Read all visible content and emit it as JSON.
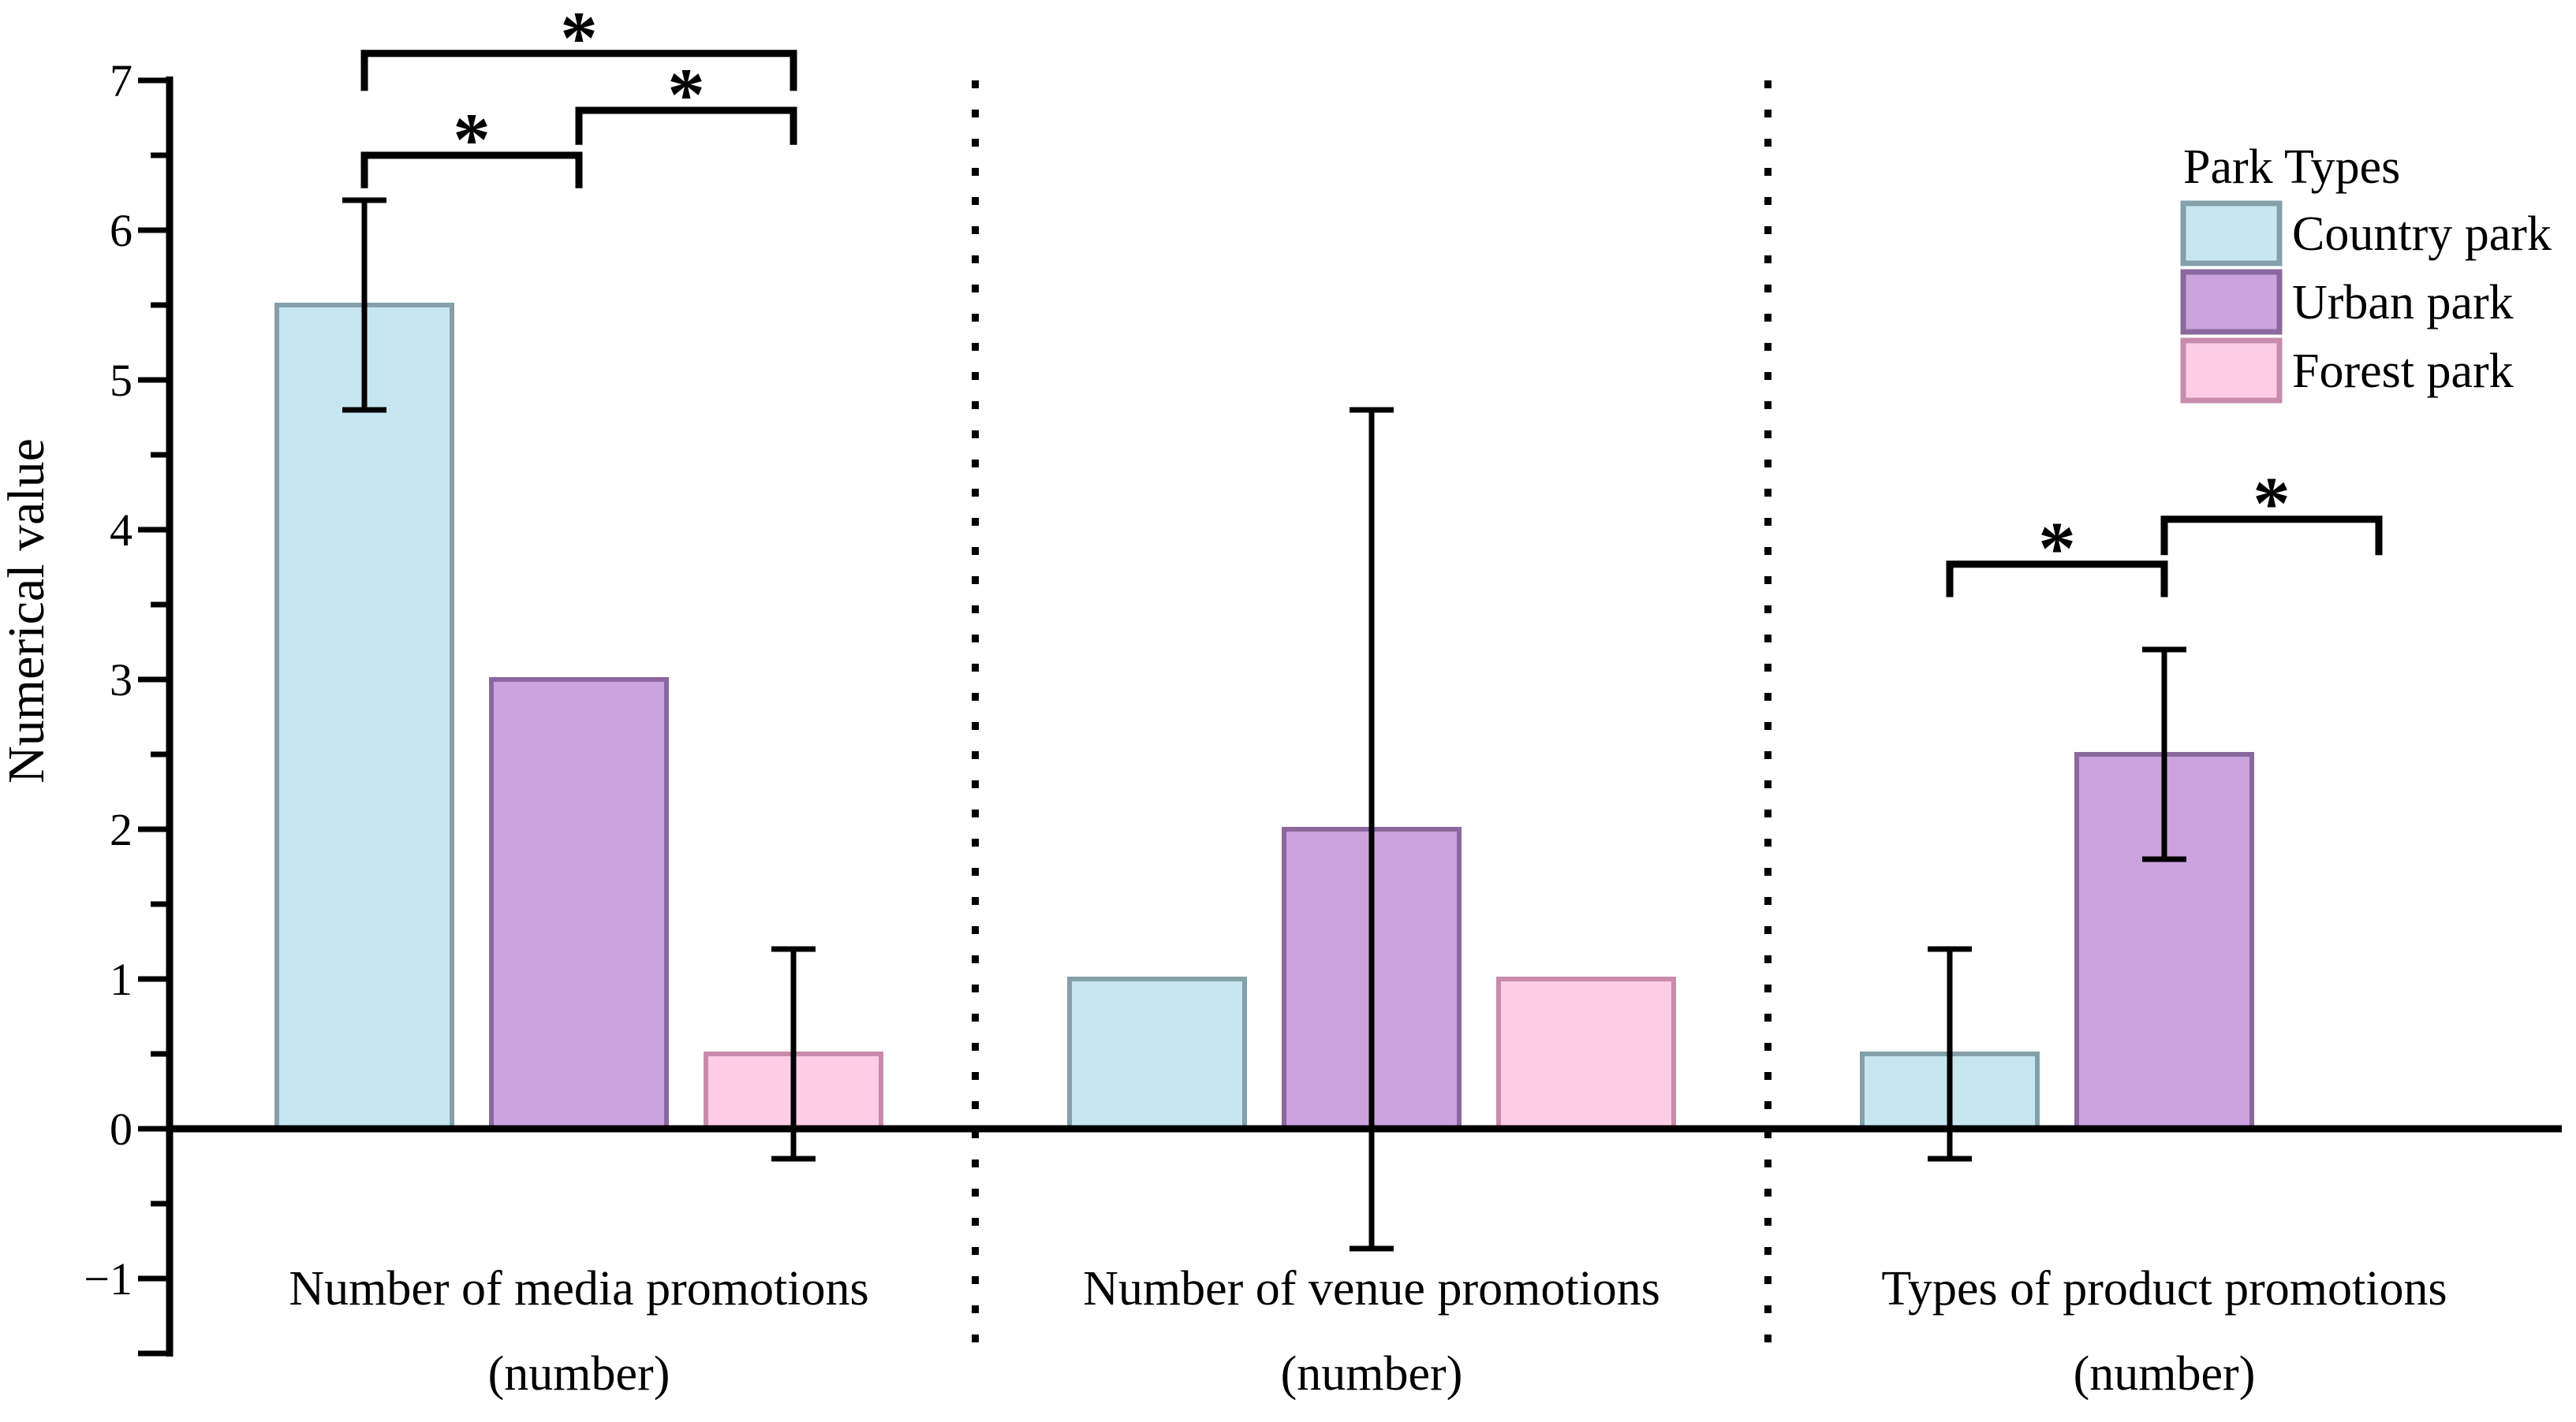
{
  "chart_data": {
    "type": "bar",
    "title": "",
    "ylabel": "Numerical value",
    "xlabel": "",
    "ylim": [
      -1.5,
      7
    ],
    "grid": false,
    "minor_tick_step": 0.5,
    "yticks": [
      {
        "v": 7,
        "label": "7"
      },
      {
        "v": 6,
        "label": "6"
      },
      {
        "v": 5,
        "label": "5"
      },
      {
        "v": 4,
        "label": "4"
      },
      {
        "v": 3,
        "label": "3"
      },
      {
        "v": 2,
        "label": "2"
      },
      {
        "v": 1,
        "label": "1"
      },
      {
        "v": 0,
        "label": "0"
      },
      {
        "v": -1,
        "label": "−1"
      }
    ],
    "categories": [
      {
        "line1": "Number of media promotions",
        "line2": "(number)"
      },
      {
        "line1": "Number of venue promotions",
        "line2": "(number)"
      },
      {
        "line1": "Types of product promotions",
        "line2": "(number)"
      }
    ],
    "legend": {
      "title": "Park Types",
      "position": "top-right",
      "items": [
        {
          "label": "Country park"
        },
        {
          "label": "Urban park"
        },
        {
          "label": "Forest park"
        }
      ]
    },
    "series": [
      {
        "name": "Country park",
        "fill": "#c6e7ef",
        "stroke": "#84a0a8",
        "values": [
          5.5,
          1.0,
          0.5
        ],
        "errors": [
          {
            "plus": 0.7,
            "minus": 0.7
          },
          null,
          {
            "plus": 0.7,
            "minus": 0.7
          }
        ]
      },
      {
        "name": "Urban park",
        "fill": "#cba3de",
        "stroke": "#8a689e",
        "values": [
          3.0,
          2.0,
          2.5
        ],
        "errors": [
          null,
          {
            "plus": 2.8,
            "minus": 2.8
          },
          {
            "plus": 0.7,
            "minus": 0.7
          }
        ]
      },
      {
        "name": "Forest park",
        "fill": "#fdcde6",
        "stroke": "#c98bab",
        "values": [
          0.5,
          1.0,
          null
        ],
        "errors": [
          {
            "plus": 0.7,
            "minus": 0.7
          },
          null,
          null
        ]
      }
    ],
    "significance_brackets": [
      {
        "group": 0,
        "a": 0,
        "b": 1,
        "label": "*",
        "top": 6.5,
        "leg": 6.28
      },
      {
        "group": 0,
        "a": 1,
        "b": 2,
        "label": "*",
        "top": 6.8,
        "leg": 6.57
      },
      {
        "group": 0,
        "a": 0,
        "b": 2,
        "label": "*",
        "top": 7.18,
        "leg": 6.93
      },
      {
        "group": 2,
        "a": 0,
        "b": 1,
        "label": "*",
        "top": 3.77,
        "leg": 3.55
      },
      {
        "group": 2,
        "a": 1,
        "b": 2,
        "label": "*",
        "top": 4.07,
        "leg": 3.83
      }
    ],
    "separators": {
      "style": "dotted",
      "between_groups": true
    },
    "axis_color": "#000000",
    "background": "#ffffff"
  }
}
